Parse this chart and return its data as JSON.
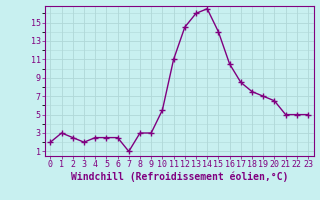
{
  "x": [
    0,
    1,
    2,
    3,
    4,
    5,
    6,
    7,
    8,
    9,
    10,
    11,
    12,
    13,
    14,
    15,
    16,
    17,
    18,
    19,
    20,
    21,
    22,
    23
  ],
  "y": [
    2,
    3,
    2.5,
    2,
    2.5,
    2.5,
    2.5,
    1,
    3,
    3,
    5.5,
    11,
    14.5,
    16,
    16.5,
    14,
    10.5,
    8.5,
    7.5,
    7,
    6.5,
    5,
    5,
    5
  ],
  "line_color": "#800080",
  "marker": "+",
  "marker_color": "#800080",
  "marker_size": 4,
  "line_width": 1.0,
  "bg_color": "#c8f0f0",
  "grid_color": "#b0d8d8",
  "xlabel": "Windchill (Refroidissement éolien,°C)",
  "xlabel_color": "#800080",
  "ylabel_ticks": [
    1,
    3,
    5,
    7,
    9,
    11,
    13,
    15
  ],
  "xtick_labels": [
    "0",
    "1",
    "2",
    "3",
    "4",
    "5",
    "6",
    "7",
    "8",
    "9",
    "10",
    "11",
    "12",
    "13",
    "14",
    "15",
    "16",
    "17",
    "18",
    "19",
    "20",
    "21",
    "22",
    "23"
  ],
  "ylim": [
    0.5,
    16.8
  ],
  "xlim": [
    -0.5,
    23.5
  ],
  "tick_color": "#800080",
  "tick_fontsize": 6,
  "xlabel_fontsize": 7,
  "spine_color": "#800080"
}
